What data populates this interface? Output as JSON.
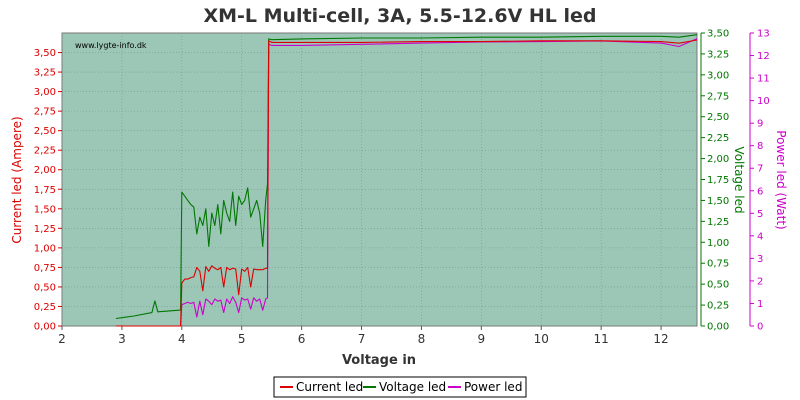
{
  "chart_data": {
    "type": "line",
    "title": "XM-L Multi-cell, 3A, 5.5-12.6V HL led",
    "watermark": "www.lygte-info.dk",
    "xlabel": "Voltage in",
    "xlim": [
      2,
      12.6
    ],
    "x_ticks": [
      "2",
      "3",
      "4",
      "5",
      "6",
      "7",
      "8",
      "9",
      "10",
      "11",
      "12"
    ],
    "grid": true,
    "legend_position": "bottom",
    "axes": {
      "left": {
        "label": "Current led (Ampere)",
        "color": "#dd0000",
        "ylim": [
          0,
          3.75
        ],
        "ticks": [
          "0,00",
          "0,25",
          "0,50",
          "0,75",
          "1,00",
          "1,25",
          "1,50",
          "1,75",
          "2,00",
          "2,25",
          "2,50",
          "2,75",
          "3,00",
          "3,25",
          "3,50"
        ]
      },
      "right1": {
        "label": "Voltage led",
        "color": "#007700",
        "ylim": [
          0,
          3.5
        ],
        "ticks": [
          "0,00",
          "0,25",
          "0,50",
          "0,75",
          "1,00",
          "1,25",
          "1,50",
          "1,75",
          "2,00",
          "2,25",
          "2,50",
          "2,75",
          "3,00",
          "3,25",
          "3,50"
        ]
      },
      "right2": {
        "label": "Power led (Watt)",
        "color": "#cc00cc",
        "ylim": [
          0,
          13
        ],
        "ticks": [
          "0",
          "1",
          "2",
          "3",
          "4",
          "5",
          "6",
          "7",
          "8",
          "9",
          "10",
          "11",
          "12",
          "13"
        ]
      }
    },
    "series": [
      {
        "name": "Current led",
        "axis": "left",
        "color": "#dd0000",
        "x": [
          2.9,
          3.5,
          3.98,
          4.0,
          4.05,
          4.1,
          4.15,
          4.2,
          4.25,
          4.3,
          4.35,
          4.4,
          4.45,
          4.5,
          4.55,
          4.6,
          4.65,
          4.7,
          4.75,
          4.8,
          4.85,
          4.9,
          4.95,
          5.0,
          5.05,
          5.1,
          5.15,
          5.2,
          5.25,
          5.3,
          5.35,
          5.4,
          5.43,
          5.45,
          5.5,
          6.0,
          7.0,
          8.0,
          9.0,
          10.0,
          11.0,
          12.0,
          12.3,
          12.6
        ],
        "y": [
          0.0,
          0.0,
          0.0,
          0.55,
          0.6,
          0.6,
          0.62,
          0.63,
          0.75,
          0.7,
          0.45,
          0.76,
          0.7,
          0.77,
          0.74,
          0.72,
          0.75,
          0.5,
          0.75,
          0.72,
          0.74,
          0.73,
          0.4,
          0.73,
          0.7,
          0.75,
          0.5,
          0.73,
          0.72,
          0.72,
          0.72,
          0.74,
          0.74,
          3.65,
          3.63,
          3.63,
          3.63,
          3.64,
          3.64,
          3.65,
          3.65,
          3.64,
          3.62,
          3.66
        ]
      },
      {
        "name": "Voltage led",
        "axis": "right1",
        "color": "#007700",
        "x": [
          2.9,
          3.2,
          3.5,
          3.55,
          3.6,
          3.98,
          4.0,
          4.05,
          4.1,
          4.15,
          4.2,
          4.25,
          4.3,
          4.35,
          4.4,
          4.45,
          4.5,
          4.55,
          4.6,
          4.65,
          4.7,
          4.75,
          4.8,
          4.85,
          4.9,
          4.95,
          5.0,
          5.05,
          5.1,
          5.15,
          5.2,
          5.25,
          5.3,
          5.35,
          5.4,
          5.43,
          5.45,
          5.5,
          6.0,
          7.0,
          8.0,
          9.0,
          10.0,
          11.0,
          12.0,
          12.3,
          12.6
        ],
        "y": [
          0.09,
          0.12,
          0.16,
          0.3,
          0.17,
          0.19,
          1.6,
          1.55,
          1.5,
          1.45,
          1.42,
          1.1,
          1.3,
          1.2,
          1.4,
          0.95,
          1.35,
          1.2,
          1.45,
          1.1,
          1.5,
          1.35,
          1.25,
          1.6,
          1.2,
          1.55,
          1.45,
          1.5,
          1.65,
          1.3,
          1.4,
          1.5,
          1.35,
          0.95,
          1.5,
          1.7,
          3.43,
          3.42,
          3.43,
          3.44,
          3.44,
          3.45,
          3.45,
          3.46,
          3.46,
          3.45,
          3.48
        ]
      },
      {
        "name": "Power led",
        "axis": "right2",
        "color": "#cc00cc",
        "x": [
          3.98,
          4.0,
          4.05,
          4.1,
          4.15,
          4.2,
          4.25,
          4.3,
          4.35,
          4.4,
          4.45,
          4.5,
          4.55,
          4.6,
          4.65,
          4.7,
          4.75,
          4.8,
          4.85,
          4.9,
          4.95,
          5.0,
          5.05,
          5.1,
          5.15,
          5.2,
          5.25,
          5.3,
          5.35,
          5.4,
          5.43,
          5.45,
          5.5,
          6.0,
          7.0,
          8.0,
          9.0,
          10.0,
          11.0,
          12.0,
          12.3,
          12.6
        ],
        "y": [
          0.0,
          0.95,
          1.0,
          1.05,
          1.0,
          1.05,
          0.4,
          1.1,
          0.5,
          1.2,
          1.1,
          0.95,
          1.2,
          1.1,
          1.15,
          0.6,
          1.2,
          1.0,
          1.3,
          1.05,
          0.6,
          1.25,
          1.15,
          1.2,
          0.75,
          1.25,
          1.1,
          1.2,
          0.7,
          1.2,
          1.25,
          12.5,
          12.45,
          12.45,
          12.5,
          12.55,
          12.6,
          12.62,
          12.65,
          12.55,
          12.4,
          12.75
        ]
      }
    ]
  }
}
